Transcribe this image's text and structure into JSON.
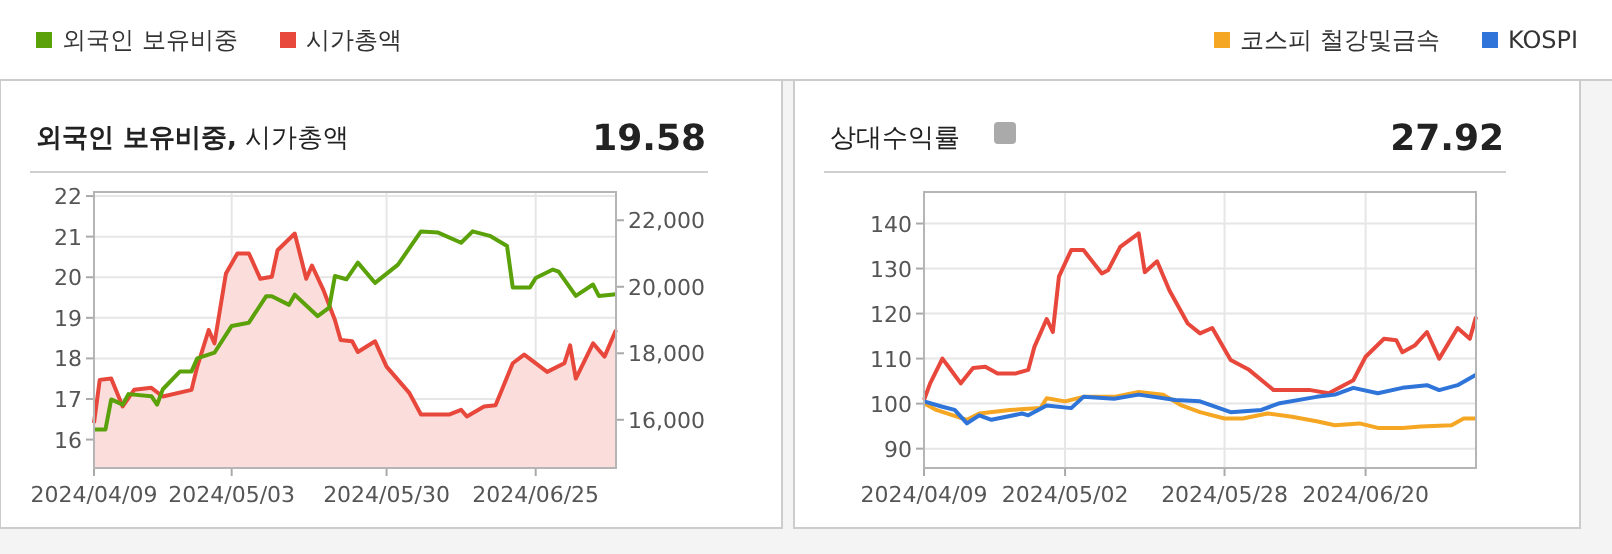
{
  "chart_data": [
    {
      "type": "line",
      "title": "**외국인 보유비중,** 시가총액",
      "annotations": [
        "19.58"
      ],
      "legend": "top left",
      "grid": true,
      "marker": "none",
      "xlim": [
        "2024-04-09",
        "2024-07-09"
      ],
      "xticks": [
        {
          "value": "2024-04-09",
          "label": "2024/04/09"
        },
        {
          "value": "2024-05-03",
          "label": "2024/05/03"
        },
        {
          "value": "2024-05-30",
          "label": "2024/05/30"
        },
        {
          "value": "2024-06-25",
          "label": "2024/06/25"
        }
      ],
      "ylim": [
        15.3,
        22.1
      ],
      "yticks": [
        16,
        17,
        18,
        19,
        20,
        21,
        22
      ],
      "y2lim": [
        14550,
        22850
      ],
      "y2ticks": [
        {
          "value": 16000,
          "label": "16,000"
        },
        {
          "value": 18000,
          "label": "18,000"
        },
        {
          "value": 20000,
          "label": "20,000"
        },
        {
          "value": 22000,
          "label": "22,000"
        }
      ],
      "series": [
        {
          "name": "외국인 보유비중",
          "color": "#5ba20a",
          "x": [
            "2024-04-09",
            "2024-04-11",
            "2024-04-12",
            "2024-04-14",
            "2024-04-15",
            "2024-04-19",
            "2024-04-20",
            "2024-04-21",
            "2024-04-24",
            "2024-04-26",
            "2024-04-27",
            "2024-04-30",
            "2024-05-03",
            "2024-05-06",
            "2024-05-09",
            "2024-05-10",
            "2024-05-13",
            "2024-05-14",
            "2024-05-18",
            "2024-05-20",
            "2024-05-21",
            "2024-05-23",
            "2024-05-25",
            "2024-05-28",
            "2024-06-01",
            "2024-06-05",
            "2024-06-08",
            "2024-06-12",
            "2024-06-14",
            "2024-06-17",
            "2024-06-20",
            "2024-06-21",
            "2024-06-24",
            "2024-06-25",
            "2024-06-28",
            "2024-06-29",
            "2024-07-02",
            "2024-07-05",
            "2024-07-06",
            "2024-07-09"
          ],
          "values": [
            16.25,
            16.25,
            16.99,
            16.86,
            17.12,
            17.07,
            16.86,
            17.24,
            17.68,
            17.68,
            18.0,
            18.14,
            18.8,
            18.88,
            19.53,
            19.53,
            19.32,
            19.57,
            19.04,
            19.25,
            20.03,
            19.95,
            20.36,
            19.86,
            20.31,
            21.13,
            21.1,
            20.85,
            21.13,
            21.02,
            20.77,
            19.75,
            19.75,
            19.98,
            20.19,
            20.14,
            19.54,
            19.82,
            19.54,
            19.58
          ]
        },
        {
          "name": "시가총액",
          "type": "area",
          "axis": "y2",
          "color": "#e8473c",
          "x": [
            "2024-04-09",
            "2024-04-10",
            "2024-04-12",
            "2024-04-14",
            "2024-04-16",
            "2024-04-19",
            "2024-04-21",
            "2024-04-26",
            "2024-04-27",
            "2024-04-29",
            "2024-04-30",
            "2024-05-02",
            "2024-05-04",
            "2024-05-06",
            "2024-05-08",
            "2024-05-10",
            "2024-05-11",
            "2024-05-14",
            "2024-05-16",
            "2024-05-17",
            "2024-05-19",
            "2024-05-21",
            "2024-05-22",
            "2024-05-24",
            "2024-05-25",
            "2024-05-28",
            "2024-05-30",
            "2024-06-03",
            "2024-06-05",
            "2024-06-10",
            "2024-06-12",
            "2024-06-13",
            "2024-06-16",
            "2024-06-18",
            "2024-06-21",
            "2024-06-23",
            "2024-06-27",
            "2024-06-30",
            "2024-07-01",
            "2024-07-02",
            "2024-07-05",
            "2024-07-07",
            "2024-07-09"
          ],
          "values": [
            15900,
            17200,
            17240,
            16400,
            16900,
            16960,
            16700,
            16900,
            17600,
            18700,
            18300,
            20400,
            21000,
            21000,
            20240,
            20300,
            21100,
            21600,
            20240,
            20640,
            19900,
            19000,
            18400,
            18360,
            18040,
            18360,
            17600,
            16800,
            16160,
            16160,
            16300,
            16100,
            16400,
            16440,
            17700,
            17960,
            17440,
            17700,
            18240,
            17240,
            18300,
            17900,
            18700
          ]
        }
      ]
    },
    {
      "type": "line",
      "title": "상대수익률",
      "annotations": [
        "27.92"
      ],
      "legend": "top right",
      "grid": true,
      "marker": "none",
      "xlim": [
        "2024-04-09",
        "2024-07-08"
      ],
      "xticks": [
        {
          "value": "2024-04-09",
          "label": "2024/04/09"
        },
        {
          "value": "2024-05-02",
          "label": "2024/05/02"
        },
        {
          "value": "2024-05-28",
          "label": "2024/05/28"
        },
        {
          "value": "2024-06-20",
          "label": "2024/06/20"
        }
      ],
      "ylim": [
        85.7,
        147
      ],
      "yticks": [
        90,
        100,
        110,
        120,
        130,
        140
      ],
      "series": [
        {
          "color": "#e8473c",
          "x": [
            "2024-04-09",
            "2024-04-10",
            "2024-04-12",
            "2024-04-13",
            "2024-04-15",
            "2024-04-17",
            "2024-04-19",
            "2024-04-21",
            "2024-04-24",
            "2024-04-26",
            "2024-04-27",
            "2024-04-29",
            "2024-04-30",
            "2024-05-01",
            "2024-05-03",
            "2024-05-05",
            "2024-05-08",
            "2024-05-09",
            "2024-05-11",
            "2024-05-14",
            "2024-05-15",
            "2024-05-17",
            "2024-05-19",
            "2024-05-22",
            "2024-05-24",
            "2024-05-26",
            "2024-05-29",
            "2024-06-01",
            "2024-06-05",
            "2024-06-11",
            "2024-06-14",
            "2024-06-18",
            "2024-06-20",
            "2024-06-23",
            "2024-06-25",
            "2024-06-26",
            "2024-06-28",
            "2024-06-30",
            "2024-07-02",
            "2024-07-05",
            "2024-07-07",
            "2024-07-08"
          ],
          "values": [
            100.8,
            104.5,
            110,
            108.2,
            104.5,
            107.9,
            108.2,
            106.7,
            106.7,
            107.5,
            112.6,
            118.8,
            115.9,
            128.2,
            134.1,
            134.1,
            128.9,
            129.6,
            134.8,
            137.8,
            129.2,
            131.6,
            125.2,
            117.8,
            115.6,
            116.8,
            109.7,
            107.5,
            103,
            103,
            102.3,
            105.2,
            110.4,
            114.4,
            114.1,
            111.4,
            112.9,
            115.9,
            110,
            116.8,
            114.4,
            119.3
          ]
        },
        {
          "name": "코스피 철강및금속",
          "color": "#f5a623",
          "x": [
            "2024-04-09",
            "2024-04-11",
            "2024-04-16",
            "2024-04-18",
            "2024-04-23",
            "2024-04-28",
            "2024-04-29",
            "2024-05-02",
            "2024-05-05",
            "2024-05-10",
            "2024-05-14",
            "2024-05-18",
            "2024-05-21",
            "2024-05-24",
            "2024-05-28",
            "2024-05-31",
            "2024-06-04",
            "2024-06-08",
            "2024-06-12",
            "2024-06-15",
            "2024-06-19",
            "2024-06-22",
            "2024-06-26",
            "2024-06-29",
            "2024-07-04",
            "2024-07-06",
            "2024-07-08"
          ],
          "values": [
            100.1,
            98.6,
            96.4,
            97.8,
            98.6,
            99,
            101.2,
            100.5,
            101.5,
            101.5,
            102.6,
            102,
            99.6,
            98.1,
            96.7,
            96.7,
            97.8,
            97.1,
            96.1,
            95.2,
            95.6,
            94.6,
            94.6,
            94.9,
            95.2,
            96.7,
            96.7
          ]
        },
        {
          "name": "KOSPI",
          "color": "#2f74d9",
          "x": [
            "2024-04-09",
            "2024-04-12",
            "2024-04-14",
            "2024-04-16",
            "2024-04-18",
            "2024-04-20",
            "2024-04-25",
            "2024-04-26",
            "2024-04-29",
            "2024-05-03",
            "2024-05-05",
            "2024-05-10",
            "2024-05-14",
            "2024-05-20",
            "2024-05-24",
            "2024-05-29",
            "2024-06-03",
            "2024-06-06",
            "2024-06-12",
            "2024-06-15",
            "2024-06-18",
            "2024-06-22",
            "2024-06-26",
            "2024-06-30",
            "2024-07-02",
            "2024-07-05",
            "2024-07-08"
          ],
          "values": [
            100.5,
            99.3,
            98.6,
            95.6,
            97.4,
            96.4,
            97.8,
            97.4,
            99.6,
            99,
            101.5,
            101.1,
            102,
            100.8,
            100.5,
            98.1,
            98.6,
            100.1,
            101.5,
            102,
            103.5,
            102.3,
            103.5,
            104.1,
            103,
            104.1,
            106.4
          ]
        }
      ]
    }
  ]
}
